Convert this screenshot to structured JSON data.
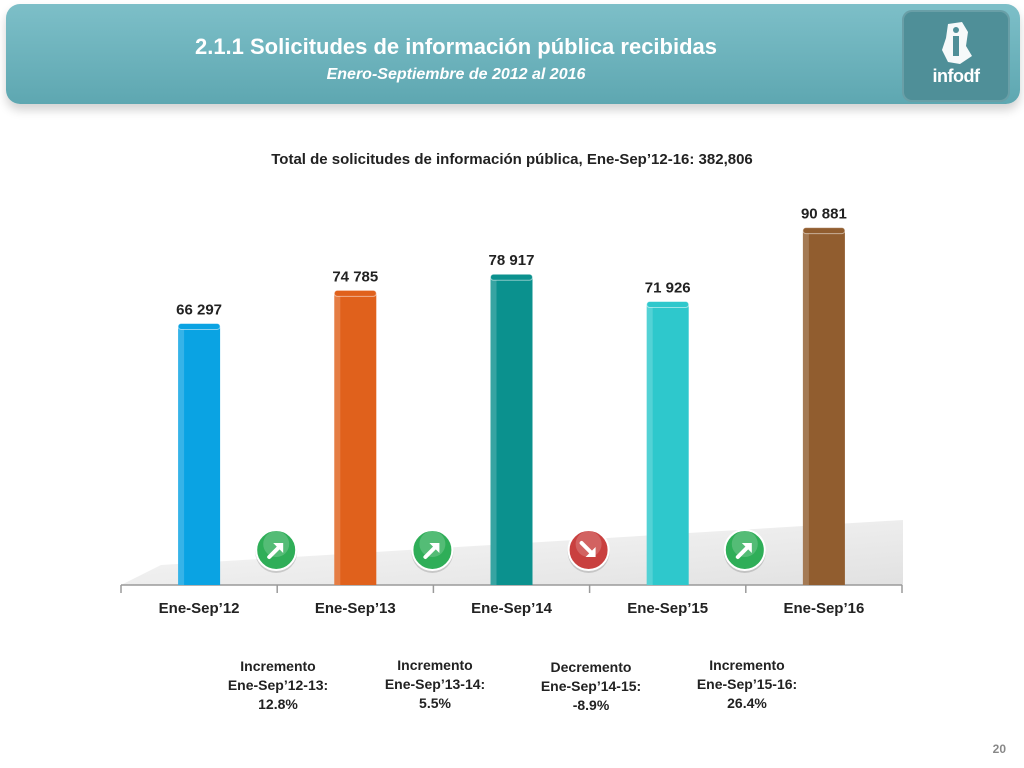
{
  "header": {
    "title": "2.1.1 Solicitudes de información pública recibidas",
    "subtitle": "Enero-Septiembre de 2012 al 2016",
    "logo_text": "infodf"
  },
  "chart_data": {
    "type": "bar",
    "title": "Total de solicitudes de información pública, Ene-Sep’12-16: 382,806",
    "categories": [
      "Ene-Sep’12",
      "Ene-Sep’13",
      "Ene-Sep’14",
      "Ene-Sep’15",
      "Ene-Sep’16"
    ],
    "values": [
      66297,
      74785,
      78917,
      71926,
      90881
    ],
    "value_labels": [
      "66 297",
      "74 785",
      "78 917",
      "71 926",
      "90 881"
    ],
    "colors": [
      "#0aa3e3",
      "#e0611c",
      "#0b918e",
      "#2ec8cc",
      "#915d2f"
    ],
    "ylim": [
      0,
      100000
    ],
    "grid": false,
    "change_indicators": [
      {
        "direction": "up",
        "color": "#2fae58",
        "icon": "arrow-up-right-icon"
      },
      {
        "direction": "up",
        "color": "#2fae58",
        "icon": "arrow-up-right-icon"
      },
      {
        "direction": "down",
        "color": "#c9403f",
        "icon": "arrow-down-right-icon"
      },
      {
        "direction": "up",
        "color": "#2fae58",
        "icon": "arrow-up-right-icon"
      }
    ]
  },
  "notes": [
    {
      "line1": "Incremento",
      "line2": "Ene-Sep’12-13:",
      "line3": "12.8%"
    },
    {
      "line1": "Incremento",
      "line2": "Ene-Sep’13-14:",
      "line3": "5.5%"
    },
    {
      "line1": "Decremento",
      "line2": "Ene-Sep’14-15:",
      "line3": "-8.9%"
    },
    {
      "line1": "Incremento",
      "line2": "Ene-Sep’15-16:",
      "line3": "26.4%"
    }
  ],
  "footer": {
    "page_number": "20"
  }
}
